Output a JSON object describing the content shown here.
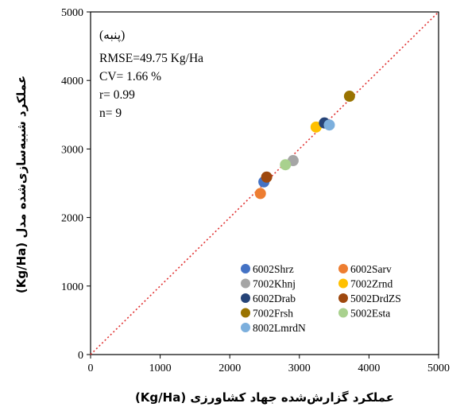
{
  "chart_data": {
    "type": "scatter",
    "xlabel": "عملکرد  گزارش‌شده جهاد کشاورزی (Kg/Ha)",
    "ylabel": "عملکرد شبیه‌سازی‌شده مدل (Kg/Ha)",
    "xlim": [
      0,
      5000
    ],
    "ylim": [
      0,
      5000
    ],
    "xticks": [
      "0",
      "1000",
      "2000",
      "3000",
      "4000",
      "5000"
    ],
    "yticks": [
      "0",
      "1000",
      "2000",
      "3000",
      "4000",
      "5000"
    ],
    "grid": false,
    "legend_position": "bottom-right",
    "reference_line": {
      "type": "1:1",
      "style": "dotted",
      "color": "#e03030"
    },
    "annotations": {
      "crop": "(پنبه)",
      "rmse": "RMSE=49.75 Kg/Ha",
      "cv": "CV= 1.66 %",
      "r": "r= 0.99",
      "n": "n= 9"
    },
    "series": [
      {
        "name": "6002Shrz",
        "color": "#4472c4",
        "x": 2490,
        "y": 2520
      },
      {
        "name": "6002Sarv",
        "color": "#ed7d31",
        "x": 2440,
        "y": 2350
      },
      {
        "name": "7002Khnj",
        "color": "#a5a5a5",
        "x": 2910,
        "y": 2830
      },
      {
        "name": "7002Zrnd",
        "color": "#ffc000",
        "x": 3240,
        "y": 3320
      },
      {
        "name": "6002Drab",
        "color": "#264478",
        "x": 3360,
        "y": 3380
      },
      {
        "name": "5002DrdZS",
        "color": "#9e480e",
        "x": 2530,
        "y": 2590
      },
      {
        "name": "7002Frsh",
        "color": "#997300",
        "x": 3720,
        "y": 3770
      },
      {
        "name": "5002Esta",
        "color": "#a9d18e",
        "x": 2800,
        "y": 2770
      },
      {
        "name": "8002LmrdN",
        "color": "#7cafdd",
        "x": 3430,
        "y": 3350
      }
    ]
  }
}
